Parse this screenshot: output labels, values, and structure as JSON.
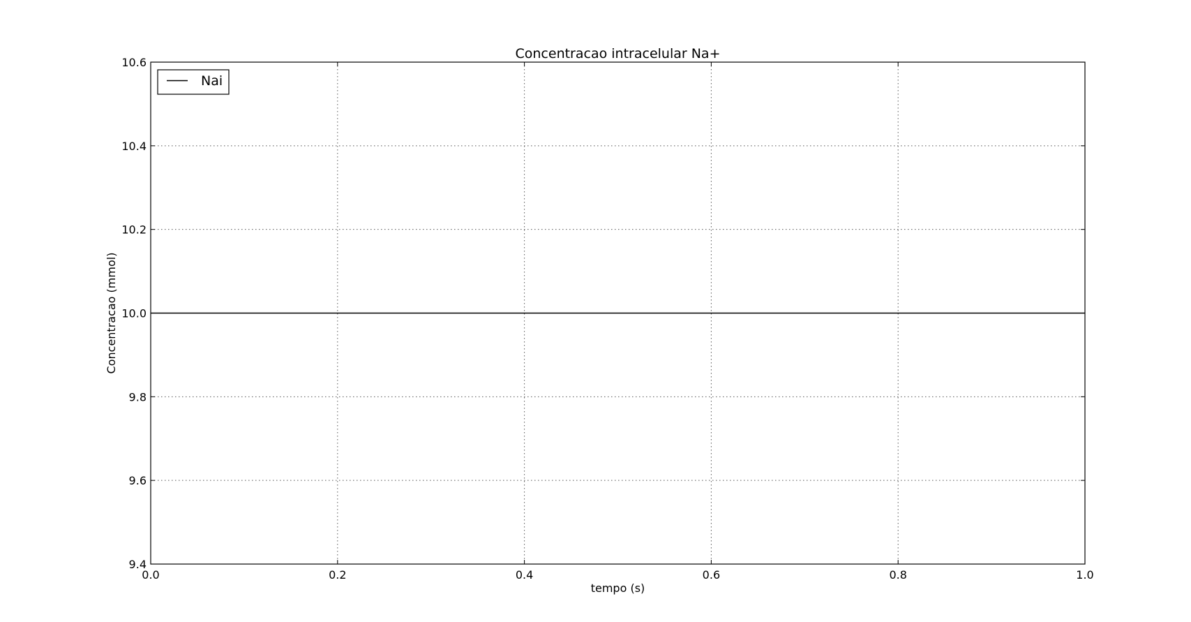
{
  "chart_data": {
    "type": "line",
    "title": "Concentracao intracelular Na+",
    "xlabel": "tempo (s)",
    "ylabel": "Concentracao (mmol)",
    "xlim": [
      0.0,
      1.0
    ],
    "ylim": [
      9.4,
      10.6
    ],
    "xticks": [
      0.0,
      0.2,
      0.4,
      0.6,
      0.8,
      1.0
    ],
    "xtick_labels": [
      "0.0",
      "0.2",
      "0.4",
      "0.6",
      "0.8",
      "1.0"
    ],
    "yticks": [
      9.4,
      9.6,
      9.8,
      10.0,
      10.2,
      10.4,
      10.6
    ],
    "ytick_labels": [
      "9.4",
      "9.6",
      "9.8",
      "10.0",
      "10.2",
      "10.4",
      "10.6"
    ],
    "grid": true,
    "legend_position": "top-left",
    "series": [
      {
        "name": "Nai",
        "color": "#000000",
        "x": [
          0.0,
          1.0
        ],
        "y": [
          10.0,
          10.0
        ]
      }
    ]
  }
}
